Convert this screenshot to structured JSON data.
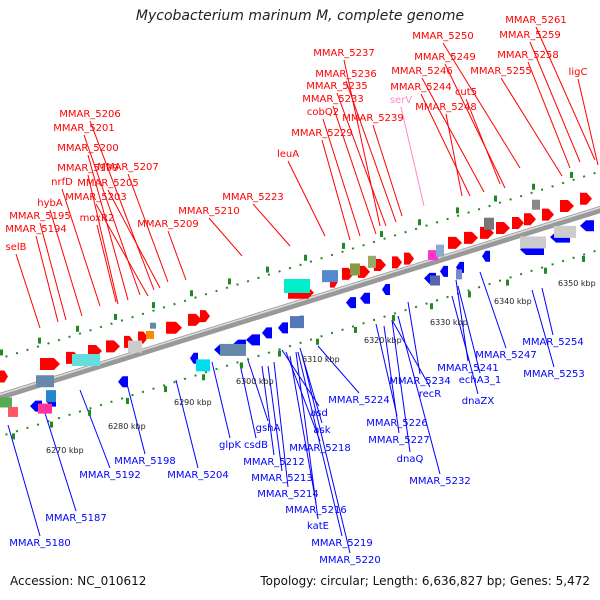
{
  "title": "Mycobacterium marinum M, complete genome",
  "accession_line": "Accession: NC_010612",
  "summary_line": "Topology: circular; Length: 6,636,827 bp; Genes: 5,472",
  "colors": {
    "forward": "#ff0000",
    "reverse": "#0000ff",
    "rna": "#ff88cc",
    "backbone": "#999999",
    "ticks": "#228822"
  },
  "ticks": [
    "6270 kbp",
    "6280 kbp",
    "6290 kbp",
    "6300 kbp",
    "6310 kbp",
    "6320 kbp",
    "6330 kbp",
    "6340 kbp",
    "6350 kbp"
  ],
  "top_labels": [
    {
      "text": "MMAR_5261",
      "color": "#ff0000"
    },
    {
      "text": "MMAR_5259",
      "color": "#ff0000"
    },
    {
      "text": "MMAR_5250",
      "color": "#ff0000"
    },
    {
      "text": "MMAR_5258",
      "color": "#ff0000"
    },
    {
      "text": "MMAR_5237",
      "color": "#ff0000"
    },
    {
      "text": "MMAR_5249",
      "color": "#ff0000"
    },
    {
      "text": "MMAR_5236",
      "color": "#ff0000"
    },
    {
      "text": "MMAR_5246",
      "color": "#ff0000"
    },
    {
      "text": "MMAR_5255",
      "color": "#ff0000"
    },
    {
      "text": "ligC",
      "color": "#ff0000"
    },
    {
      "text": "MMAR_5235",
      "color": "#ff0000"
    },
    {
      "text": "MMAR_5244",
      "color": "#ff0000"
    },
    {
      "text": "cut5",
      "color": "#ff0000"
    },
    {
      "text": "MMAR_5233",
      "color": "#ff0000"
    },
    {
      "text": "serV",
      "color": "#ff88cc"
    },
    {
      "text": "MMAR_5248",
      "color": "#ff0000"
    },
    {
      "text": "cobQ2",
      "color": "#ff0000"
    },
    {
      "text": "MMAR_5206",
      "color": "#ff0000"
    },
    {
      "text": "MMAR_5239",
      "color": "#ff0000"
    },
    {
      "text": "MMAR_5201",
      "color": "#ff0000"
    },
    {
      "text": "MMAR_5229",
      "color": "#ff0000"
    },
    {
      "text": "MMAR_5200",
      "color": "#ff0000"
    },
    {
      "text": "leuA",
      "color": "#ff0000"
    },
    {
      "text": "MMAR_5199",
      "color": "#ff0000"
    },
    {
      "text": "MMAR_5207",
      "color": "#ff0000"
    },
    {
      "text": "nrfD",
      "color": "#ff0000"
    },
    {
      "text": "MMAR_5205",
      "color": "#ff0000"
    },
    {
      "text": "MMAR_5203",
      "color": "#ff0000"
    },
    {
      "text": "hybA",
      "color": "#ff0000"
    },
    {
      "text": "MMAR_5223",
      "color": "#ff0000"
    },
    {
      "text": "MMAR_5210",
      "color": "#ff0000"
    },
    {
      "text": "MMAR_5195",
      "color": "#ff0000"
    },
    {
      "text": "moxR2",
      "color": "#ff0000"
    },
    {
      "text": "MMAR_5194",
      "color": "#ff0000"
    },
    {
      "text": "MMAR_5209",
      "color": "#ff0000"
    },
    {
      "text": "selB",
      "color": "#ff0000"
    }
  ],
  "bottom_labels": [
    {
      "text": "MMAR_5254",
      "color": "#0000ff"
    },
    {
      "text": "MMAR_5247",
      "color": "#0000ff"
    },
    {
      "text": "MMAR_5241",
      "color": "#0000ff"
    },
    {
      "text": "echA3_1",
      "color": "#0000ff"
    },
    {
      "text": "MMAR_5253",
      "color": "#0000ff"
    },
    {
      "text": "MMAR_5234",
      "color": "#0000ff"
    },
    {
      "text": "dnaZX",
      "color": "#0000ff"
    },
    {
      "text": "recR",
      "color": "#0000ff"
    },
    {
      "text": "MMAR_5224",
      "color": "#0000ff"
    },
    {
      "text": "asd",
      "color": "#0000ff"
    },
    {
      "text": "MMAR_5226",
      "color": "#0000ff"
    },
    {
      "text": "ask",
      "color": "#0000ff"
    },
    {
      "text": "MMAR_5227",
      "color": "#0000ff"
    },
    {
      "text": "gshA",
      "color": "#0000ff"
    },
    {
      "text": "MMAR_5218",
      "color": "#0000ff"
    },
    {
      "text": "glpK",
      "color": "#0000ff"
    },
    {
      "text": "csdB",
      "color": "#0000ff"
    },
    {
      "text": "dnaQ",
      "color": "#0000ff"
    },
    {
      "text": "MMAR_5198",
      "color": "#0000ff"
    },
    {
      "text": "MMAR_5212",
      "color": "#0000ff"
    },
    {
      "text": "MMAR_5192",
      "color": "#0000ff"
    },
    {
      "text": "MMAR_5204",
      "color": "#0000ff"
    },
    {
      "text": "MMAR_5213",
      "color": "#0000ff"
    },
    {
      "text": "MMAR_5232",
      "color": "#0000ff"
    },
    {
      "text": "MMAR_5214",
      "color": "#0000ff"
    },
    {
      "text": "MMAR_5187",
      "color": "#0000ff"
    },
    {
      "text": "MMAR_5216",
      "color": "#0000ff"
    },
    {
      "text": "katE",
      "color": "#0000ff"
    },
    {
      "text": "MMAR_5180",
      "color": "#0000ff"
    },
    {
      "text": "MMAR_5219",
      "color": "#0000ff"
    },
    {
      "text": "MMAR_5220",
      "color": "#0000ff"
    }
  ]
}
